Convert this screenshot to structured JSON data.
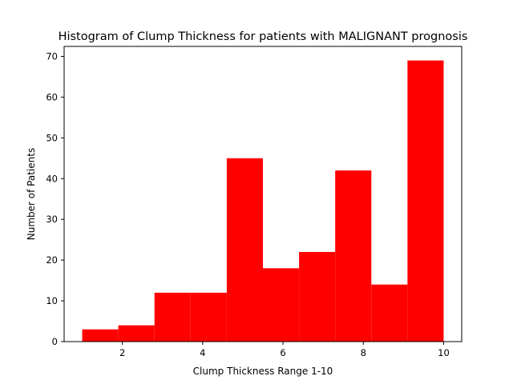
{
  "chart_data": {
    "type": "bar",
    "title": "Histogram of Clump Thickness for patients with MALIGNANT prognosis",
    "xlabel": "Clump Thickness Range 1-10",
    "ylabel": "Number of Patients",
    "bin_edges": [
      1.0,
      1.9,
      2.8,
      3.7,
      4.6,
      5.5,
      6.4,
      7.3,
      8.2,
      9.1,
      10.0
    ],
    "values": [
      3,
      4,
      12,
      12,
      45,
      18,
      22,
      42,
      14,
      69
    ],
    "xlim": [
      0.55,
      10.45
    ],
    "ylim": [
      0,
      72.45
    ],
    "xticks": [
      2,
      4,
      6,
      8,
      10
    ],
    "yticks": [
      0,
      10,
      20,
      30,
      40,
      50,
      60,
      70
    ],
    "bar_color": "#ff0000",
    "grid": false,
    "legend": "none"
  }
}
